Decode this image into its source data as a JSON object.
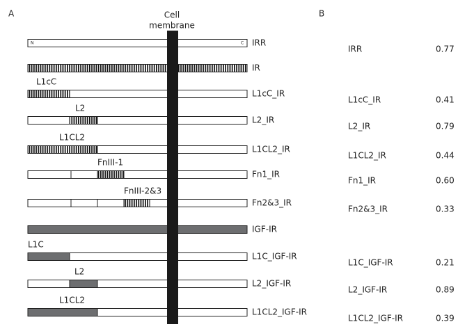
{
  "header": {
    "panel_a": "A",
    "panel_b": "B",
    "membrane_label": [
      "Cell",
      "membrane"
    ]
  },
  "terminals": {
    "n": "N",
    "c": "C"
  },
  "constructs": [
    {
      "label": "IRR",
      "b_label": "IRR",
      "score": "0.77",
      "score_color": "#d23a2f"
    },
    {
      "label": "IR"
    },
    {
      "label": "L1cC_IR",
      "domain_label": "L1cC",
      "b_label": "L1cC_IR",
      "score": "0.41",
      "score_color": "#2f82c2"
    },
    {
      "label": "L2_IR",
      "domain_label": "L2",
      "b_label": "L2_IR",
      "score": "0.79",
      "score_color": "#d23a2f"
    },
    {
      "label": "L1CL2_IR",
      "domain_label": "L1CL2",
      "b_label": "L1CL2_IR",
      "score": "0.44",
      "score_color": "#2f82c2"
    },
    {
      "label": "Fn1_IR",
      "domain_label": "FnIII-1",
      "b_label": "Fn1_IR",
      "score": "0.60",
      "score_color": "#d23a2f"
    },
    {
      "label": "Fn2&3_IR",
      "domain_label": "FnIII-2&3",
      "b_label": "Fn2&3_IR",
      "score": "0.33",
      "score_color": "#2f82c2"
    },
    {
      "label": "IGF-IR"
    },
    {
      "label": "L1C_IGF-IR",
      "domain_label": "L1C",
      "b_label": "L1C_IGF-IR",
      "score": "0.21",
      "score_color": "#2f82c2"
    },
    {
      "label": "L2_IGF-IR",
      "domain_label": "L2",
      "b_label": "L2_IGF-IR",
      "score": "0.89",
      "score_color": "#d23a2f"
    },
    {
      "label": "L1CL2_IGF-IR",
      "domain_label": "L1CL2",
      "b_label": "L1CL2_IGF-IR",
      "score": "0.39",
      "score_color": "#2f82c2"
    }
  ]
}
